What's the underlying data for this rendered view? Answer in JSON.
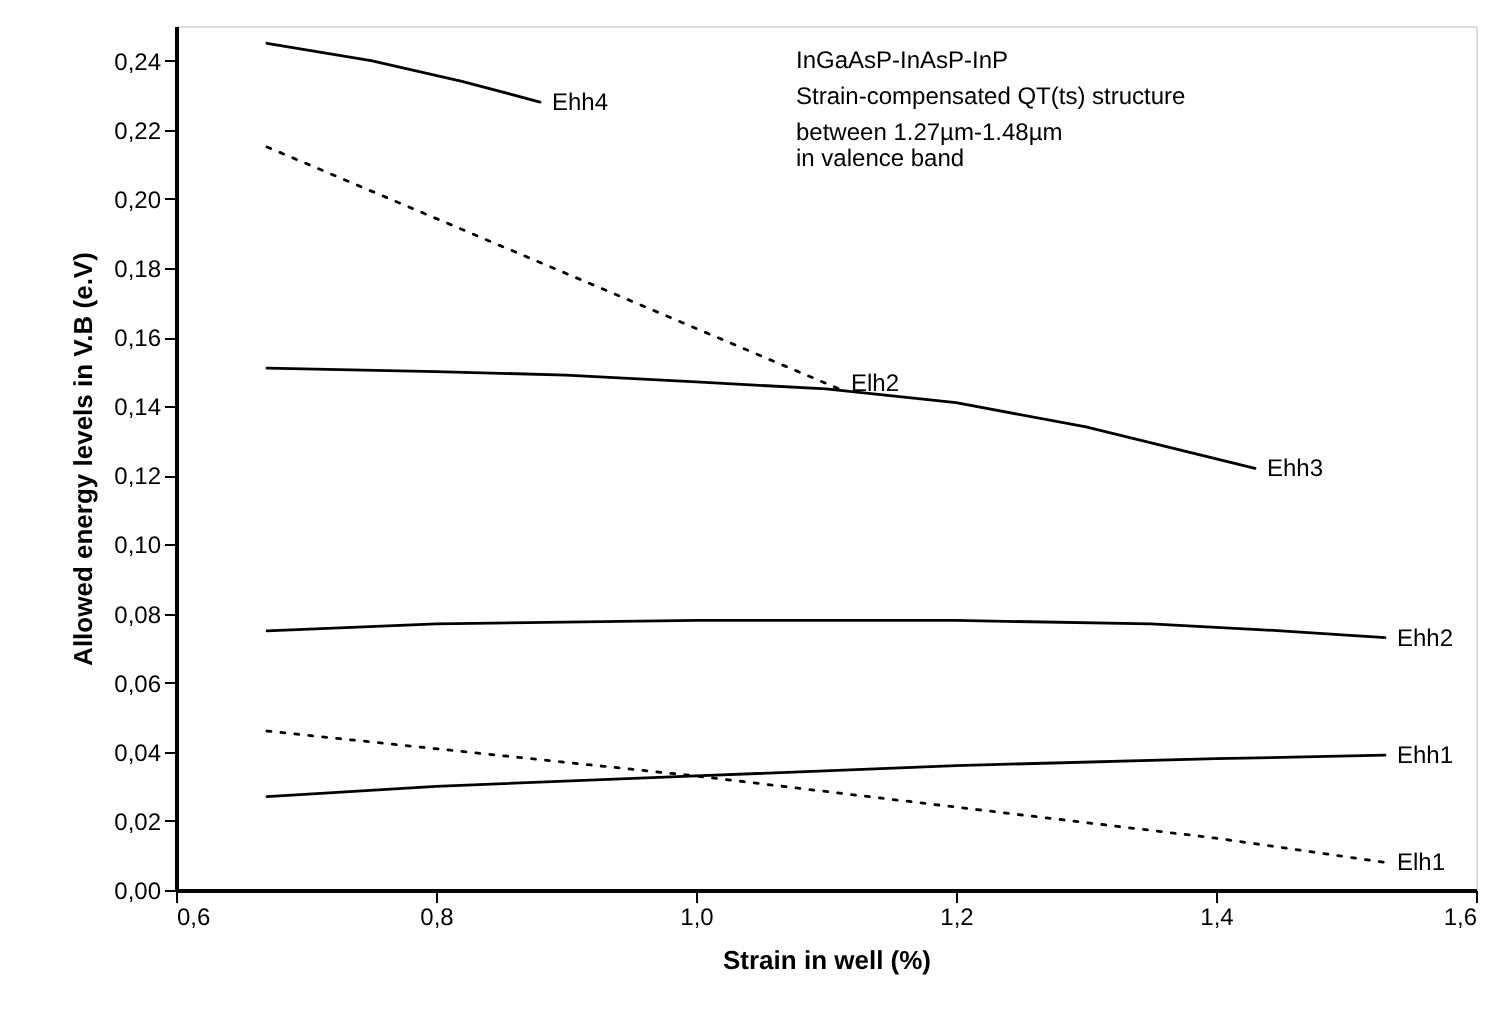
{
  "chart_data": {
    "type": "line",
    "xlabel": "Strain in well (%)",
    "ylabel": "Allowed energy levels in V.B (e.V)",
    "annotations": [
      "InGaAsP-InAsP-InP",
      "Strain-compensated QT(ts) structure",
      "between 1.27µm-1.48µm",
      "   in valence band"
    ],
    "xlim": [
      0.6,
      1.6
    ],
    "ylim": [
      0,
      0.25
    ],
    "xticks": [
      {
        "value": 0.6,
        "label": "0,6"
      },
      {
        "value": 0.8,
        "label": "0,8"
      },
      {
        "value": 1.0,
        "label": "1,0"
      },
      {
        "value": 1.2,
        "label": "1,2"
      },
      {
        "value": 1.4,
        "label": "1,4"
      },
      {
        "value": 1.6,
        "label": "1,6"
      }
    ],
    "yticks": [
      {
        "value": 0,
        "label": "0,00"
      },
      {
        "value": 0.02,
        "label": "0,02"
      },
      {
        "value": 0.04,
        "label": "0,04"
      },
      {
        "value": 0.06,
        "label": "0,06"
      },
      {
        "value": 0.08,
        "label": "0,08"
      },
      {
        "value": 0.1,
        "label": "0,10"
      },
      {
        "value": 0.12,
        "label": "0,12"
      },
      {
        "value": 0.14,
        "label": "0,14"
      },
      {
        "value": 0.16,
        "label": "0,16"
      },
      {
        "value": 0.18,
        "label": "0,18"
      },
      {
        "value": 0.2,
        "label": "0,20"
      },
      {
        "value": 0.22,
        "label": "0,22"
      },
      {
        "value": 0.24,
        "label": "0,24"
      }
    ],
    "grid": false,
    "marker": "none",
    "series": [
      {
        "name": "Ehh4",
        "color": "#000000",
        "line_style": "solid",
        "x": [
          0.67,
          0.75,
          0.82,
          0.88
        ],
        "values": [
          0.245,
          0.24,
          0.234,
          0.228
        ]
      },
      {
        "name": "Elh2",
        "color": "#000000",
        "line_style": "dotted",
        "x": [
          0.67,
          1.11
        ],
        "values": [
          0.215,
          0.145
        ]
      },
      {
        "name": "Ehh3",
        "color": "#000000",
        "line_style": "solid",
        "x": [
          0.67,
          0.8,
          0.9,
          1.0,
          1.1,
          1.2,
          1.3,
          1.43
        ],
        "values": [
          0.151,
          0.15,
          0.149,
          0.147,
          0.145,
          0.141,
          0.134,
          0.122
        ]
      },
      {
        "name": "Ehh2",
        "color": "#000000",
        "line_style": "solid",
        "x": [
          0.67,
          0.8,
          1.0,
          1.2,
          1.35,
          1.45,
          1.53
        ],
        "values": [
          0.075,
          0.077,
          0.078,
          0.078,
          0.077,
          0.075,
          0.073
        ]
      },
      {
        "name": "Ehh1",
        "color": "#000000",
        "line_style": "solid",
        "x": [
          0.67,
          0.8,
          1.0,
          1.2,
          1.4,
          1.53
        ],
        "values": [
          0.027,
          0.03,
          0.033,
          0.036,
          0.038,
          0.039
        ]
      },
      {
        "name": "Elh1",
        "color": "#000000",
        "line_style": "dotted",
        "x": [
          0.67,
          1.0,
          1.2,
          1.4,
          1.53
        ],
        "values": [
          0.046,
          0.033,
          0.024,
          0.015,
          0.008
        ]
      }
    ]
  }
}
